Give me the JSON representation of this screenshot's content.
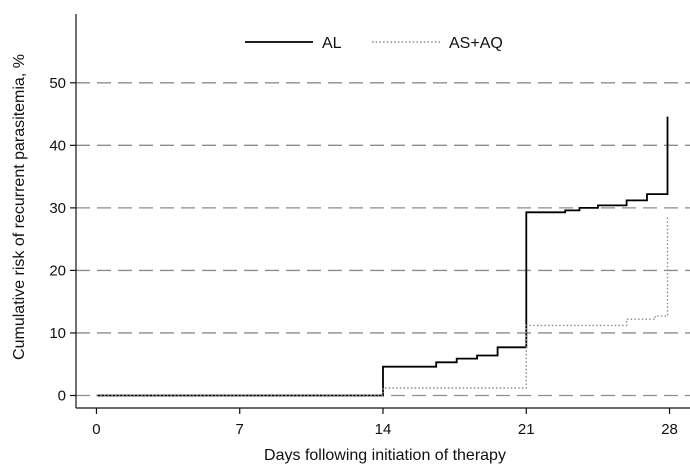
{
  "chart_data": {
    "type": "line",
    "step": true,
    "xlabel": "Days following initiation of therapy",
    "ylabel": "Cumulative risk of recurrent parasitemia, %",
    "xlim": [
      -1,
      29
    ],
    "ylim": [
      -2,
      61
    ],
    "xticks": [
      0,
      7,
      14,
      21,
      28
    ],
    "yticks": [
      0,
      10,
      20,
      30,
      40,
      50
    ],
    "grid": "horizontal dashed",
    "legend_position": "top",
    "series": [
      {
        "name": "AL",
        "color": "#000000",
        "style": "solid",
        "points": [
          [
            0,
            0
          ],
          [
            14,
            0
          ],
          [
            14,
            4.6
          ],
          [
            16.6,
            4.6
          ],
          [
            16.6,
            5.3
          ],
          [
            17.6,
            5.3
          ],
          [
            17.6,
            5.9
          ],
          [
            18.6,
            5.9
          ],
          [
            18.6,
            6.4
          ],
          [
            19.6,
            6.4
          ],
          [
            19.6,
            7.7
          ],
          [
            21,
            7.7
          ],
          [
            21,
            29.3
          ],
          [
            22.9,
            29.3
          ],
          [
            22.9,
            29.6
          ],
          [
            23.6,
            29.6
          ],
          [
            23.6,
            30.0
          ],
          [
            24.5,
            30.0
          ],
          [
            24.5,
            30.4
          ],
          [
            25.9,
            30.4
          ],
          [
            25.9,
            31.2
          ],
          [
            26.9,
            31.2
          ],
          [
            26.9,
            32.2
          ],
          [
            27.9,
            32.2
          ],
          [
            27.9,
            44.6
          ]
        ]
      },
      {
        "name": "AS+AQ",
        "color": "#8a8a8a",
        "style": "dotted",
        "points": [
          [
            0,
            0
          ],
          [
            14,
            0
          ],
          [
            14,
            1.2
          ],
          [
            21,
            1.2
          ],
          [
            21,
            11.2
          ],
          [
            25.9,
            11.2
          ],
          [
            25.9,
            12.2
          ],
          [
            27.3,
            12.2
          ],
          [
            27.3,
            12.7
          ],
          [
            27.9,
            12.7
          ],
          [
            27.9,
            28.5
          ]
        ]
      }
    ]
  }
}
